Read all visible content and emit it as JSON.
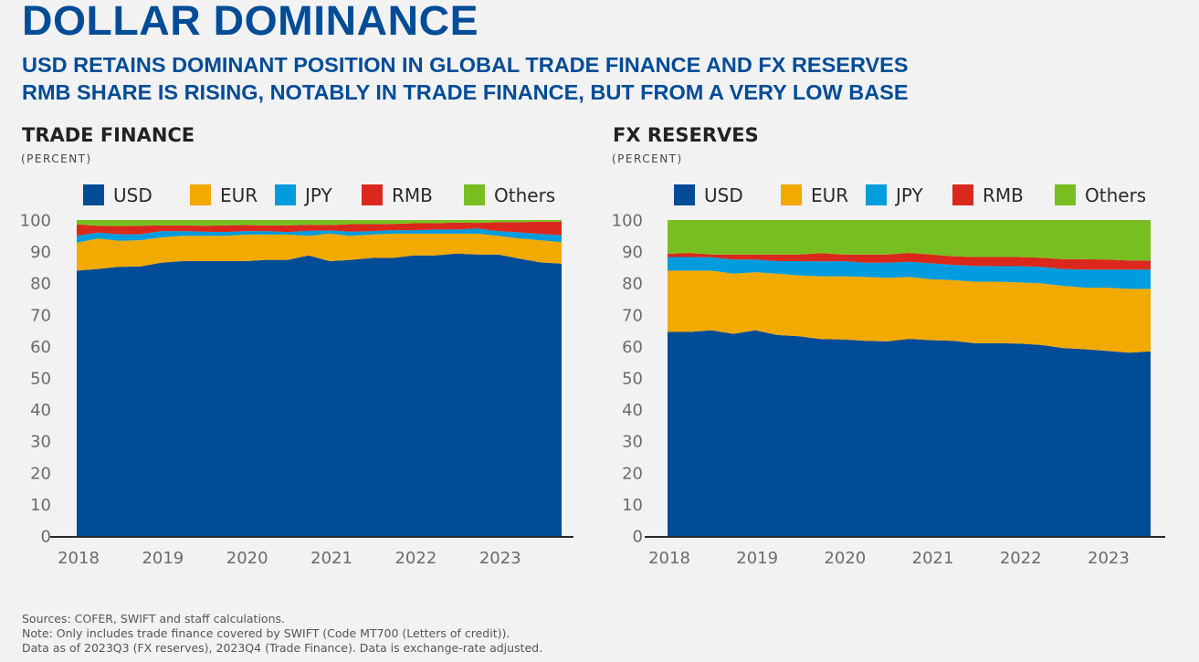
{
  "header": {
    "title": "DOLLAR DOMINANCE",
    "subtitle_line1": "USD RETAINS DOMINANT POSITION IN GLOBAL TRADE FINANCE AND FX RESERVES",
    "subtitle_line2": "RMB SHARE IS RISING, NOTABLY IN TRADE FINANCE, BUT FROM A VERY LOW BASE"
  },
  "footer": {
    "sources": "Sources: COFER, SWIFT and staff calculations.",
    "note": "Note: Only includes trade finance covered by SWIFT (Code MT700 (Letters of credit)).",
    "data_as_of": "Data as of 2023Q3 (FX reserves), 2023Q4 (Trade Finance). Data is exchange-rate adjusted."
  },
  "colors": {
    "USD": "#004c97",
    "EUR": "#f2a900",
    "JPY": "#009cde",
    "RMB": "#da291c",
    "Others": "#78be20",
    "title": "#004c97"
  },
  "chart_data": [
    {
      "type": "area",
      "stacked": true,
      "title": "TRADE FINANCE",
      "ylabel": "(PERCENT)",
      "xlabel": "",
      "ylim": [
        0,
        100
      ],
      "yticks": [
        0,
        10,
        20,
        30,
        40,
        50,
        60,
        70,
        80,
        90,
        100
      ],
      "xlim": [
        2018.0,
        2023.75
      ],
      "xticks": [
        "2018",
        "2019",
        "2020",
        "2021",
        "2022",
        "2023"
      ],
      "legend": [
        "USD",
        "EUR",
        "JPY",
        "RMB",
        "Others"
      ],
      "legend_position": "top",
      "grid": false,
      "x": [
        "2018Q1",
        "2018Q2",
        "2018Q3",
        "2018Q4",
        "2019Q1",
        "2019Q2",
        "2019Q3",
        "2019Q4",
        "2020Q1",
        "2020Q2",
        "2020Q3",
        "2020Q4",
        "2021Q1",
        "2021Q2",
        "2021Q3",
        "2021Q4",
        "2022Q1",
        "2022Q2",
        "2022Q3",
        "2022Q4",
        "2023Q1",
        "2023Q2",
        "2023Q3",
        "2023Q4"
      ],
      "series": [
        {
          "name": "USD",
          "values": [
            84.0,
            84.5,
            85.2,
            85.3,
            86.5,
            87.0,
            87.0,
            87.0,
            87.0,
            87.4,
            87.4,
            88.8,
            87.0,
            87.4,
            88.0,
            88.0,
            88.8,
            88.8,
            89.4,
            89.1,
            89.1,
            87.8,
            86.6,
            86.2
          ]
        },
        {
          "name": "EUR",
          "values": [
            8.8,
            9.7,
            8.2,
            8.3,
            8.0,
            8.0,
            8.0,
            8.0,
            8.4,
            8.0,
            8.0,
            6.2,
            8.7,
            7.6,
            7.4,
            7.7,
            6.9,
            6.9,
            6.3,
            6.6,
            5.9,
            6.4,
            7.0,
            6.8
          ]
        },
        {
          "name": "JPY",
          "values": [
            2.2,
            1.8,
            2.1,
            1.9,
            2.0,
            1.5,
            1.3,
            1.2,
            1.1,
            1.1,
            0.8,
            1.6,
            1.0,
            1.3,
            1.1,
            1.1,
            1.1,
            1.3,
            1.3,
            1.6,
            1.5,
            1.9,
            2.0,
            2.2
          ]
        },
        {
          "name": "RMB",
          "values": [
            3.6,
            2.2,
            2.6,
            2.7,
            1.8,
            1.8,
            1.9,
            2.1,
            1.9,
            1.8,
            2.1,
            1.9,
            1.7,
            2.4,
            2.2,
            2.0,
            2.2,
            2.0,
            2.2,
            1.8,
            2.8,
            3.2,
            3.9,
            4.3
          ]
        },
        {
          "name": "Others",
          "values": [
            1.4,
            1.8,
            1.9,
            1.8,
            1.7,
            1.7,
            1.8,
            1.7,
            1.6,
            1.7,
            1.7,
            1.5,
            1.6,
            1.3,
            1.3,
            1.2,
            1.0,
            1.0,
            0.8,
            0.9,
            0.7,
            0.7,
            0.5,
            0.5
          ]
        }
      ]
    },
    {
      "type": "area",
      "stacked": true,
      "title": "FX RESERVES",
      "ylabel": "(PERCENT)",
      "xlabel": "",
      "ylim": [
        0,
        100
      ],
      "yticks": [
        0,
        10,
        20,
        30,
        40,
        50,
        60,
        70,
        80,
        90,
        100
      ],
      "xlim": [
        2018.0,
        2023.5
      ],
      "xticks": [
        "2018",
        "2019",
        "2020",
        "2021",
        "2022",
        "2023"
      ],
      "legend": [
        "USD",
        "EUR",
        "JPY",
        "RMB",
        "Others"
      ],
      "legend_position": "top",
      "grid": false,
      "x": [
        "2018Q1",
        "2018Q2",
        "2018Q3",
        "2018Q4",
        "2019Q1",
        "2019Q2",
        "2019Q3",
        "2019Q4",
        "2020Q1",
        "2020Q2",
        "2020Q3",
        "2020Q4",
        "2021Q1",
        "2021Q2",
        "2021Q3",
        "2021Q4",
        "2022Q1",
        "2022Q2",
        "2022Q3",
        "2022Q4",
        "2023Q1",
        "2023Q2",
        "2023Q3"
      ],
      "series": [
        {
          "name": "USD",
          "values": [
            64.6,
            64.6,
            65.1,
            64.0,
            65.1,
            63.6,
            63.2,
            62.3,
            62.2,
            61.8,
            61.6,
            62.4,
            62.0,
            61.8,
            61.0,
            61.0,
            60.9,
            60.5,
            59.5,
            59.1,
            58.6,
            58.0,
            58.4
          ]
        },
        {
          "name": "EUR",
          "values": [
            19.4,
            19.4,
            18.9,
            19.0,
            18.4,
            19.4,
            19.3,
            19.9,
            20.0,
            20.2,
            20.1,
            19.6,
            19.3,
            19.2,
            19.5,
            19.5,
            19.4,
            19.5,
            19.7,
            19.5,
            20.0,
            20.2,
            19.8
          ]
        },
        {
          "name": "JPY",
          "values": [
            4.3,
            4.3,
            4.2,
            4.5,
            4.0,
            4.0,
            4.5,
            4.7,
            4.8,
            4.5,
            4.8,
            4.8,
            5.0,
            4.8,
            5.0,
            4.9,
            5.1,
            5.2,
            5.3,
            5.7,
            5.7,
            6.1,
            6.1
          ]
        },
        {
          "name": "RMB",
          "values": [
            1.0,
            1.3,
            0.9,
            1.6,
            1.6,
            2.1,
            2.1,
            2.6,
            2.1,
            2.6,
            2.6,
            2.8,
            2.8,
            2.7,
            2.8,
            2.9,
            2.9,
            2.9,
            3.1,
            3.3,
            3.2,
            2.9,
            2.9
          ]
        },
        {
          "name": "Others",
          "values": [
            10.7,
            10.4,
            10.9,
            10.9,
            10.9,
            10.9,
            10.9,
            10.5,
            10.9,
            10.9,
            10.9,
            10.4,
            10.9,
            11.5,
            11.7,
            11.7,
            11.7,
            11.9,
            12.4,
            12.4,
            12.5,
            12.8,
            12.8
          ]
        }
      ]
    }
  ]
}
